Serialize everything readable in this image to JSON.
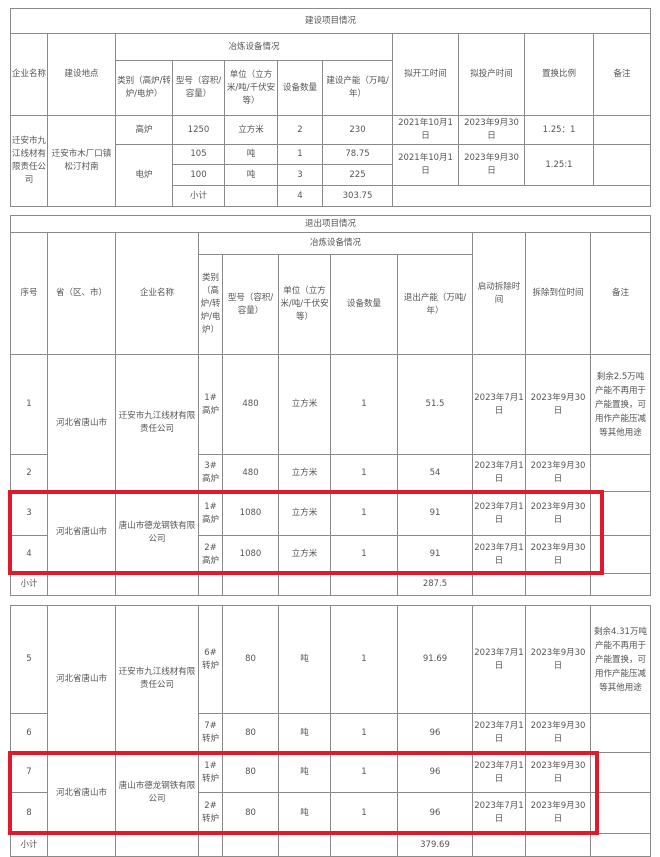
{
  "construction": {
    "title": "建设项目情况",
    "header": {
      "company": "企业名称",
      "location": "建设地点",
      "equipment": "冶炼设备情况",
      "type": "类别（高炉/转炉/电炉）",
      "model": "型号（容积/容量）",
      "unit": "单位（立方米/吨/千伏安等）",
      "count": "设备数量",
      "capacity": "建设产能（万吨/年）",
      "start": "拟开工时间",
      "production": "拟投产时间",
      "ratio": "置换比例",
      "remark": "备注"
    },
    "company": "迁安市九江线材有限责任公司",
    "location": "迁安市木厂口镇松汀村南",
    "rows": [
      {
        "type": "高炉",
        "model": "1250",
        "unit": "立方米",
        "count": "2",
        "capacity": "230",
        "start": "2021年10月1日",
        "production": "2023年9月30日",
        "ratio": "1.25：1"
      },
      {
        "type": "电炉",
        "model": "105",
        "unit": "吨",
        "count": "1",
        "capacity": "78.75",
        "start": "2021年10月1日",
        "production": "2023年9月30日",
        "ratio": "1.25:1"
      },
      {
        "model": "100",
        "unit": "吨",
        "count": "3",
        "capacity": "225"
      }
    ],
    "subtotal": {
      "label": "小计",
      "count": "4",
      "capacity": "303.75"
    }
  },
  "exit": {
    "title": "退出项目情况",
    "header": {
      "seq": "序号",
      "province": "省（区、市）",
      "company": "企业名称",
      "equipment": "冶炼设备情况",
      "type": "类别（高炉/转炉/电炉）",
      "model": "型号（容积/容量）",
      "unit": "单位（立方米/吨/千伏安等）",
      "count": "设备数量",
      "capacity": "退出产能（万吨/年）",
      "demolish_start": "启动拆除时间",
      "demolish_done": "拆除到位时间",
      "remark": "备注"
    },
    "groups": [
      {
        "province": "河北省唐山市",
        "company": "迁安市九江线材有限责任公司",
        "remark": "剩余2.5万吨产能不再用于产能置换，可用作产能压减等其他用途"
      },
      {
        "province": "河北省唐山市",
        "company": "唐山市德龙钢铁有限公司"
      },
      {
        "province": "河北省唐山市",
        "company": "迁安市九江线材有限责任公司",
        "remark": "剩余4.31万吨产能不再用于产能置换，可用作产能压减等其他用途"
      },
      {
        "province": "河北省唐山市",
        "company": "唐山市德龙钢铁有限公司"
      }
    ],
    "rows": [
      {
        "seq": "1",
        "type": "1#高炉",
        "model": "480",
        "unit": "立方米",
        "count": "1",
        "capacity": "51.5",
        "start": "2023年7月1日",
        "done": "2023年9月30日"
      },
      {
        "seq": "2",
        "type": "3#高炉",
        "model": "480",
        "unit": "立方米",
        "count": "1",
        "capacity": "54",
        "start": "2023年7月1日",
        "done": "2023年9月30日"
      },
      {
        "seq": "3",
        "type": "1#高炉",
        "model": "1080",
        "unit": "立方米",
        "count": "1",
        "capacity": "91",
        "start": "2023年7月1日",
        "done": "2023年9月30日"
      },
      {
        "seq": "4",
        "type": "2#高炉",
        "model": "1080",
        "unit": "立方米",
        "count": "1",
        "capacity": "91",
        "start": "2023年7月1日",
        "done": "2023年9月30日"
      },
      {
        "seq": "5",
        "type": "6#转炉",
        "model": "80",
        "unit": "吨",
        "count": "1",
        "capacity": "91.69",
        "start": "2023年7月1日",
        "done": "2023年9月30日"
      },
      {
        "seq": "6",
        "type": "7#转炉",
        "model": "80",
        "unit": "吨",
        "count": "1",
        "capacity": "96",
        "start": "2023年7月1日",
        "done": "2023年9月30日"
      },
      {
        "seq": "7",
        "type": "1#转炉",
        "model": "80",
        "unit": "吨",
        "count": "1",
        "capacity": "96",
        "start": "2023年7月1日",
        "done": "2023年9月30日"
      },
      {
        "seq": "8",
        "type": "2#转炉",
        "model": "80",
        "unit": "吨",
        "count": "1",
        "capacity": "96",
        "start": "2023年7月1日",
        "done": "2023年9月30日"
      }
    ],
    "subtotals": [
      {
        "label": "小计",
        "capacity": "287.5"
      },
      {
        "label": "小计",
        "capacity": "379.69"
      }
    ]
  },
  "highlight_color": "#e0192b"
}
